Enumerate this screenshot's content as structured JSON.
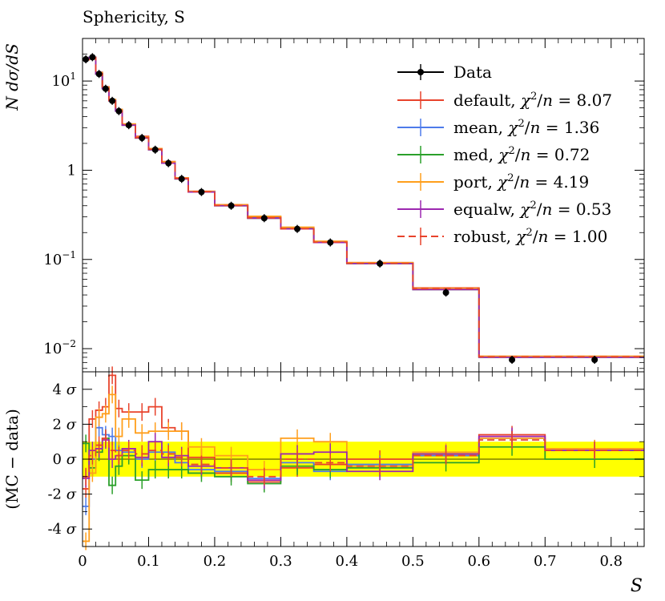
{
  "chart_data": {
    "type": "line",
    "title": "Sphericity, S",
    "xlabel": "S",
    "main_ylabel": "N dσ/dS",
    "ratio_ylabel": "(MC − data)",
    "x_range": [
      0,
      0.85
    ],
    "main_ylim": [
      0.0055,
      30
    ],
    "main_yscale": "log",
    "ratio_ylim": [
      -5,
      5
    ],
    "x_ticks": [
      "0",
      "0.1",
      "0.2",
      "0.3",
      "0.4",
      "0.5",
      "0.6",
      "0.7",
      "0.8"
    ],
    "main_y_ticks": [
      {
        "value": 10,
        "label": "10^1"
      },
      {
        "value": 1,
        "label": "1"
      },
      {
        "value": 0.1,
        "label": "10^−1"
      },
      {
        "value": 0.01,
        "label": "10^−2"
      }
    ],
    "ratio_y_ticks": [
      {
        "value": 4,
        "label": "4 σ"
      },
      {
        "value": 2,
        "label": "2 σ"
      },
      {
        "value": 0,
        "label": "0 σ"
      },
      {
        "value": -2,
        "label": "-2 σ"
      },
      {
        "value": -4,
        "label": "-4 σ"
      }
    ],
    "band": {
      "lo": -1,
      "hi": 1,
      "color": "#ffff00"
    },
    "bin_edges": [
      0,
      0.01,
      0.02,
      0.03,
      0.04,
      0.05,
      0.06,
      0.08,
      0.1,
      0.12,
      0.14,
      0.16,
      0.2,
      0.25,
      0.3,
      0.35,
      0.4,
      0.5,
      0.6,
      0.7,
      0.85
    ],
    "data": {
      "name": "Data",
      "color": "#000000",
      "x": [
        0.005,
        0.015,
        0.025,
        0.035,
        0.045,
        0.055,
        0.07,
        0.09,
        0.11,
        0.13,
        0.15,
        0.18,
        0.225,
        0.275,
        0.325,
        0.375,
        0.45,
        0.55,
        0.65,
        0.775
      ],
      "values": [
        17.5,
        18.5,
        12,
        8.2,
        6.0,
        4.6,
        3.2,
        2.3,
        1.7,
        1.2,
        0.8,
        0.57,
        0.4,
        0.29,
        0.22,
        0.155,
        0.09,
        0.0425,
        0.0075,
        0.0075
      ]
    },
    "series": [
      {
        "name": "default",
        "chi2": "8.07",
        "color": "#e8432c",
        "dashed": false,
        "values": [
          17.5,
          18.5,
          12.5,
          8.6,
          6.2,
          4.8,
          3.3,
          2.4,
          1.75,
          1.25,
          0.82,
          0.58,
          0.41,
          0.3,
          0.225,
          0.157,
          0.092,
          0.048,
          0.0082,
          0.0082
        ],
        "pulls": [
          -1.7,
          2.3,
          2.8,
          3.0,
          4.8,
          2.9,
          2.7,
          2.7,
          3.0,
          1.8,
          1.6,
          0.1,
          -0.8,
          -1.3,
          -0.5,
          -0.3,
          0.0,
          0.3,
          1.4,
          0.6
        ]
      },
      {
        "name": "mean",
        "chi2": "1.36",
        "color": "#4d7bea",
        "dashed": false,
        "values": [
          17.5,
          18.5,
          12.1,
          8.3,
          6.05,
          4.65,
          3.22,
          2.32,
          1.72,
          1.21,
          0.81,
          0.575,
          0.402,
          0.292,
          0.221,
          0.155,
          0.0902,
          0.0465,
          0.0081,
          0.0081
        ],
        "pulls": [
          -2.7,
          0.0,
          1.8,
          1.4,
          1.3,
          0.5,
          0.4,
          0.0,
          0.4,
          0.4,
          -0.2,
          -0.6,
          -0.7,
          -1.1,
          -0.2,
          -0.7,
          -0.3,
          0.2,
          1.2,
          0.5
        ]
      },
      {
        "name": "med",
        "chi2": "0.72",
        "color": "#2ba02b",
        "dashed": false,
        "values": [
          17.4,
          18.4,
          12.0,
          8.2,
          6.0,
          4.6,
          3.2,
          2.3,
          1.7,
          1.2,
          0.8,
          0.57,
          0.4,
          0.29,
          0.22,
          0.155,
          0.09,
          0.046,
          0.008,
          0.008
        ],
        "pulls": [
          0.9,
          -0.5,
          0.4,
          1.2,
          -1.5,
          -0.4,
          0.2,
          -1.2,
          -0.6,
          -0.6,
          -0.6,
          -0.8,
          -1.0,
          -1.4,
          -0.4,
          -0.6,
          -0.5,
          -0.2,
          0.7,
          0.0
        ]
      },
      {
        "name": "port",
        "chi2": "4.19",
        "color": "#ff9f1c",
        "dashed": false,
        "values": [
          17.3,
          18.2,
          12.4,
          8.5,
          6.2,
          4.8,
          3.3,
          2.35,
          1.75,
          1.24,
          0.82,
          0.58,
          0.41,
          0.305,
          0.23,
          0.16,
          0.092,
          0.0475,
          0.0082,
          0.0082
        ],
        "pulls": [
          -4.7,
          -0.8,
          2.4,
          2.6,
          3.7,
          1.3,
          2.3,
          1.5,
          1.6,
          1.6,
          1.6,
          0.7,
          0.2,
          -0.6,
          1.2,
          1.0,
          -0.4,
          0.4,
          1.2,
          0.6
        ]
      },
      {
        "name": "equalw",
        "chi2": "0.53",
        "color": "#9c27b0",
        "dashed": false,
        "values": [
          17.5,
          18.4,
          12.0,
          8.2,
          6.0,
          4.6,
          3.2,
          2.3,
          1.7,
          1.2,
          0.8,
          0.57,
          0.4,
          0.29,
          0.22,
          0.155,
          0.09,
          0.046,
          0.008,
          0.008
        ],
        "pulls": [
          -1.1,
          0.5,
          0.6,
          1.1,
          0.0,
          0.2,
          0.6,
          0.1,
          1.0,
          0.1,
          0.2,
          -0.4,
          -0.5,
          -1.2,
          0.3,
          0.4,
          -0.7,
          0.3,
          1.3,
          0.5
        ]
      },
      {
        "name": "robust",
        "chi2": "1.00",
        "color": "#e8432c",
        "dashed": true,
        "values": [
          17.4,
          18.4,
          12.1,
          8.25,
          6.05,
          4.65,
          3.22,
          2.32,
          1.72,
          1.21,
          0.81,
          0.575,
          0.403,
          0.293,
          0.221,
          0.156,
          0.0905,
          0.047,
          0.0081,
          0.0081
        ],
        "pulls": [
          -1.0,
          0.2,
          0.8,
          1.2,
          0.5,
          0.2,
          0.5,
          0.3,
          0.5,
          0.3,
          0.1,
          -0.3,
          -0.5,
          -1.0,
          0.0,
          -0.2,
          -0.4,
          0.2,
          1.1,
          0.5
        ]
      }
    ]
  }
}
